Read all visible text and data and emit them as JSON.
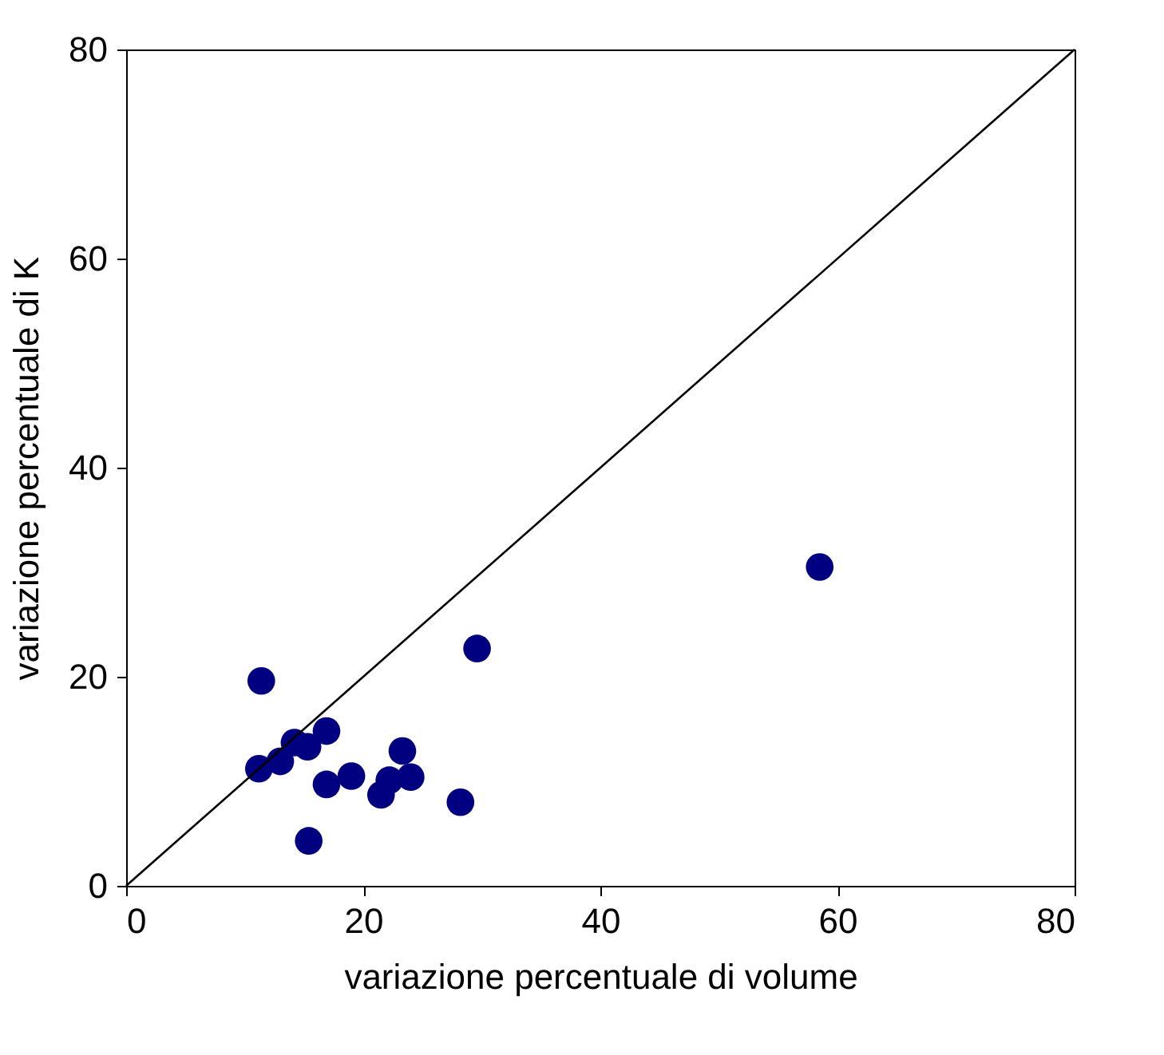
{
  "chart_data": {
    "type": "scatter",
    "xlabel": "variazione percentuale di volume",
    "ylabel": "variazione percentuale di K",
    "xlim": [
      0,
      80
    ],
    "ylim": [
      0,
      80
    ],
    "xticks": [
      0,
      20,
      40,
      60,
      80
    ],
    "yticks": [
      0,
      20,
      40,
      60,
      80
    ],
    "grid": false,
    "marker": "circle",
    "series": [
      {
        "color": "#000080",
        "x": [
          11.4,
          11.2,
          13.0,
          14.2,
          15.3,
          16.9,
          16.9,
          19.0,
          15.4,
          23.3,
          21.5,
          22.2,
          24.0,
          28.2,
          29.6,
          58.5
        ],
        "values": [
          19.6,
          11.2,
          11.9,
          13.7,
          13.3,
          14.8,
          9.7,
          10.5,
          4.3,
          12.9,
          8.7,
          10.1,
          10.4,
          8.0,
          22.7,
          30.5
        ]
      },
      {
        "type": "line",
        "color": "#000000",
        "x": [
          0,
          80
        ],
        "values": [
          0,
          80
        ],
        "marker": "none",
        "line_style": "solid"
      }
    ]
  }
}
